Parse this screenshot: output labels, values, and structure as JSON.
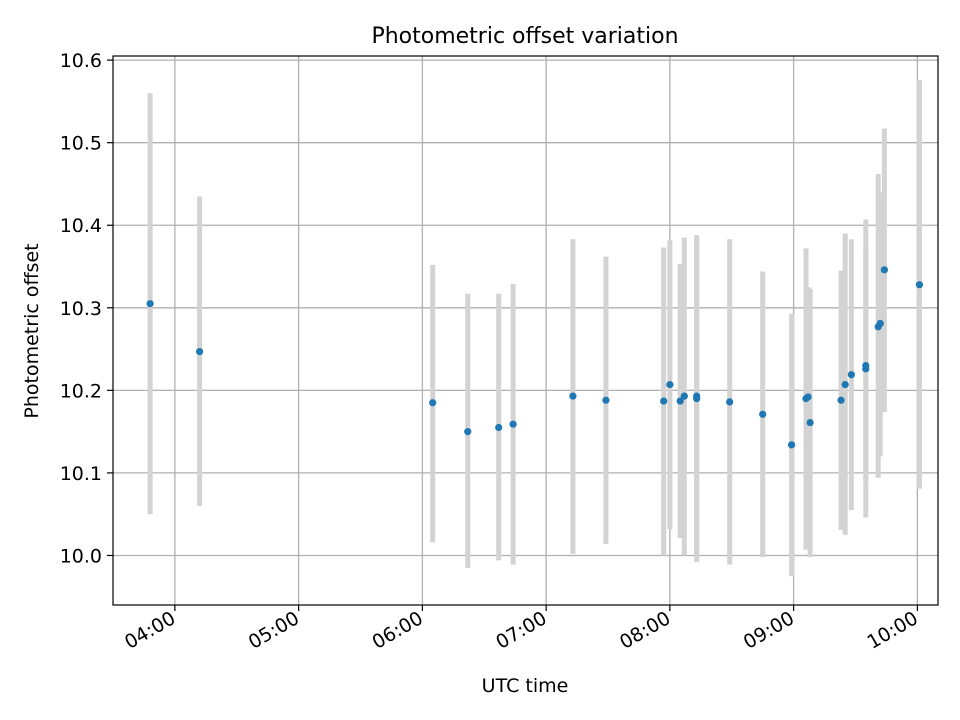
{
  "chart_data": {
    "type": "scatter",
    "title": "Photometric offset variation",
    "xlabel": "UTC time",
    "ylabel": "Photometric offset",
    "x_axis_type": "time",
    "xlim": [
      "03:30",
      "10:10"
    ],
    "ylim": [
      9.94,
      10.605
    ],
    "xticks": [
      "04:00",
      "05:00",
      "06:00",
      "07:00",
      "08:00",
      "09:00",
      "10:00"
    ],
    "yticks": [
      "10.0",
      "10.1",
      "10.2",
      "10.3",
      "10.4",
      "10.5",
      "10.6"
    ],
    "grid": true,
    "legend": "none",
    "colors": {
      "marker": "#1f77b4",
      "errorbar": "#d3d3d3",
      "grid": "#b0b0b0"
    },
    "series": [
      {
        "points": [
          {
            "x": "03:48",
            "y": 10.305,
            "ylo": 10.05,
            "yhi": 10.56
          },
          {
            "x": "04:12",
            "y": 10.247,
            "ylo": 10.06,
            "yhi": 10.435
          },
          {
            "x": "06:05",
            "y": 10.185,
            "ylo": 10.016,
            "yhi": 10.352
          },
          {
            "x": "06:22",
            "y": 10.15,
            "ylo": 9.985,
            "yhi": 10.317
          },
          {
            "x": "06:37",
            "y": 10.155,
            "ylo": 9.994,
            "yhi": 10.317
          },
          {
            "x": "06:44",
            "y": 10.159,
            "ylo": 9.989,
            "yhi": 10.329
          },
          {
            "x": "07:13",
            "y": 10.193,
            "ylo": 10.002,
            "yhi": 10.383
          },
          {
            "x": "07:29",
            "y": 10.188,
            "ylo": 10.014,
            "yhi": 10.362
          },
          {
            "x": "07:57",
            "y": 10.187,
            "ylo": 10.0,
            "yhi": 10.373
          },
          {
            "x": "08:00",
            "y": 10.207,
            "ylo": 10.032,
            "yhi": 10.382
          },
          {
            "x": "08:05",
            "y": 10.187,
            "ylo": 10.021,
            "yhi": 10.353
          },
          {
            "x": "08:07",
            "y": 10.193,
            "ylo": 10.0,
            "yhi": 10.385
          },
          {
            "x": "08:13",
            "y": 10.19,
            "ylo": 9.992,
            "yhi": 10.388
          },
          {
            "x": "08:13",
            "y": 10.193,
            "ylo": 10.0,
            "yhi": 10.386
          },
          {
            "x": "08:29",
            "y": 10.186,
            "ylo": 9.989,
            "yhi": 10.383
          },
          {
            "x": "08:45",
            "y": 10.171,
            "ylo": 9.998,
            "yhi": 10.344
          },
          {
            "x": "08:59",
            "y": 10.134,
            "ylo": 9.975,
            "yhi": 10.293
          },
          {
            "x": "09:06",
            "y": 10.19,
            "ylo": 10.007,
            "yhi": 10.372
          },
          {
            "x": "09:07",
            "y": 10.192,
            "ylo": 10.06,
            "yhi": 10.325
          },
          {
            "x": "09:08",
            "y": 10.161,
            "ylo": 9.998,
            "yhi": 10.323
          },
          {
            "x": "09:23",
            "y": 10.188,
            "ylo": 10.031,
            "yhi": 10.345
          },
          {
            "x": "09:25",
            "y": 10.207,
            "ylo": 10.025,
            "yhi": 10.39
          },
          {
            "x": "09:28",
            "y": 10.219,
            "ylo": 10.055,
            "yhi": 10.383
          },
          {
            "x": "09:35",
            "y": 10.226,
            "ylo": 10.046,
            "yhi": 10.407
          },
          {
            "x": "09:35",
            "y": 10.23,
            "ylo": 10.09,
            "yhi": 10.37
          },
          {
            "x": "09:41",
            "y": 10.277,
            "ylo": 10.094,
            "yhi": 10.462
          },
          {
            "x": "09:42",
            "y": 10.281,
            "ylo": 10.12,
            "yhi": 10.44
          },
          {
            "x": "09:44",
            "y": 10.346,
            "ylo": 10.174,
            "yhi": 10.517
          },
          {
            "x": "10:01",
            "y": 10.328,
            "ylo": 10.081,
            "yhi": 10.576
          }
        ]
      }
    ]
  }
}
